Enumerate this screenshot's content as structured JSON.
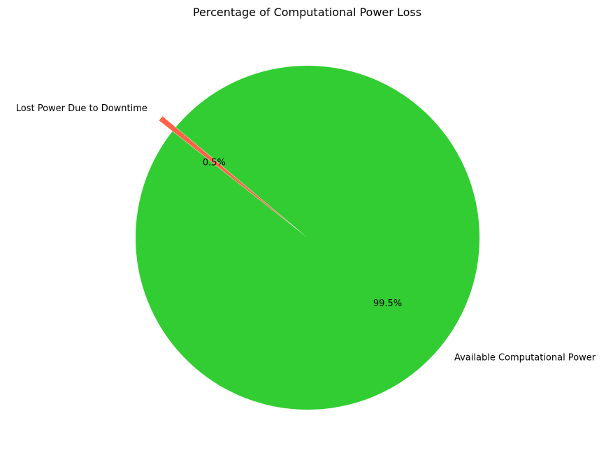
{
  "chart_data": {
    "type": "pie",
    "title": "Percentage of Computational Power Loss",
    "slices": [
      {
        "label": "Lost Power Due to Downtime",
        "value": 0.5,
        "pct_label": "0.5%",
        "color": "#ff6347",
        "exploded": true
      },
      {
        "label": "Available Computational Power",
        "value": 99.5,
        "pct_label": "99.5%",
        "color": "#32cd32",
        "exploded": false
      }
    ],
    "start_angle_deg": 140,
    "direction": "counterclockwise"
  }
}
